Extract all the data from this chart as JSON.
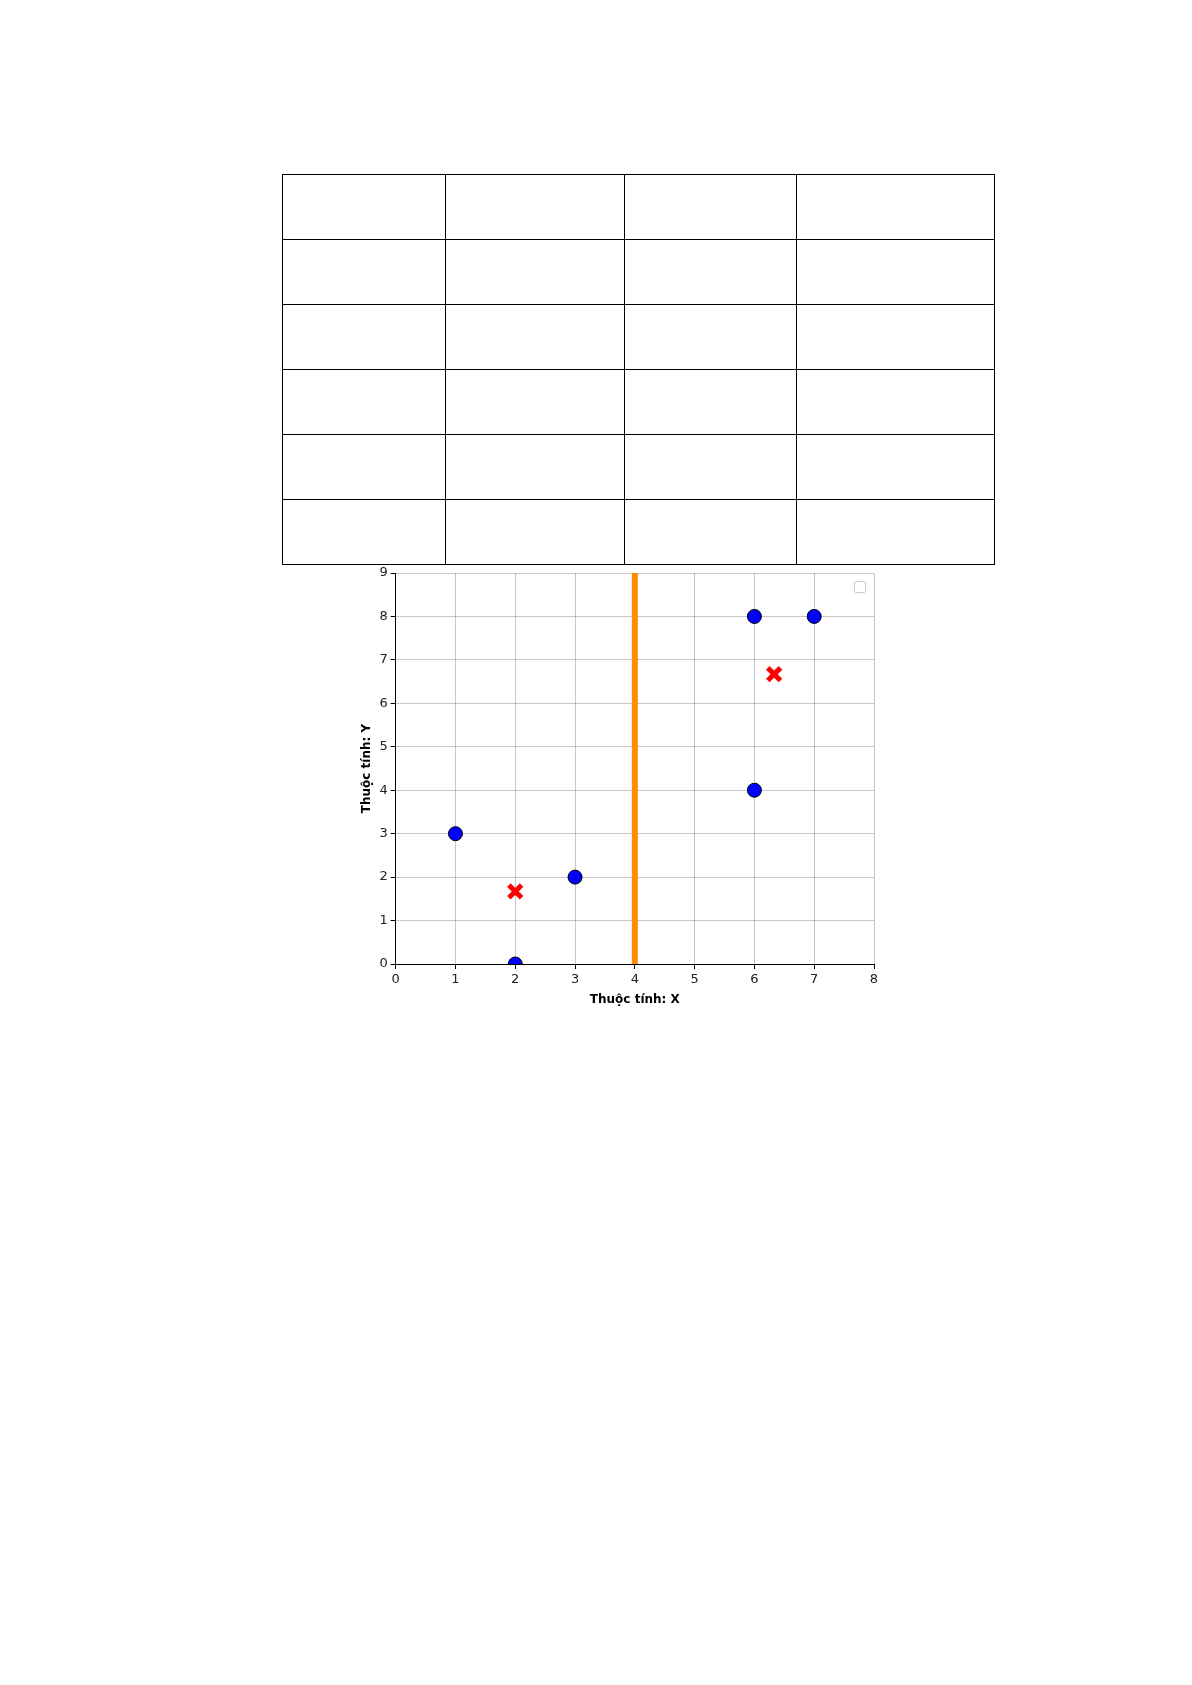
{
  "chart_data": {
    "type": "scatter",
    "xlabel": "Thuộc tính: X",
    "ylabel": "Thuộc tính: Y",
    "xlim": [
      0,
      8
    ],
    "xticks": [
      0,
      1,
      2,
      3,
      4,
      5,
      6,
      7,
      8
    ],
    "ylim": [
      0,
      9
    ],
    "yticks": [
      0,
      1,
      2,
      3,
      4,
      5,
      6,
      7,
      8,
      9
    ],
    "grid": true,
    "series": [
      {
        "type": "scatter",
        "marker": "circle",
        "color": "#0000ff",
        "x": [
          1,
          2,
          3,
          6,
          7,
          6
        ],
        "values": [
          3,
          0,
          2,
          8,
          8,
          4
        ]
      },
      {
        "type": "scatter",
        "marker": "cross",
        "color": "#ff0000",
        "x": [
          2,
          6.33
        ],
        "values": [
          1.67,
          6.67
        ]
      }
    ],
    "ref_lines": [
      {
        "axis": "x",
        "value": 4,
        "color": "#ff8c00"
      }
    ]
  }
}
